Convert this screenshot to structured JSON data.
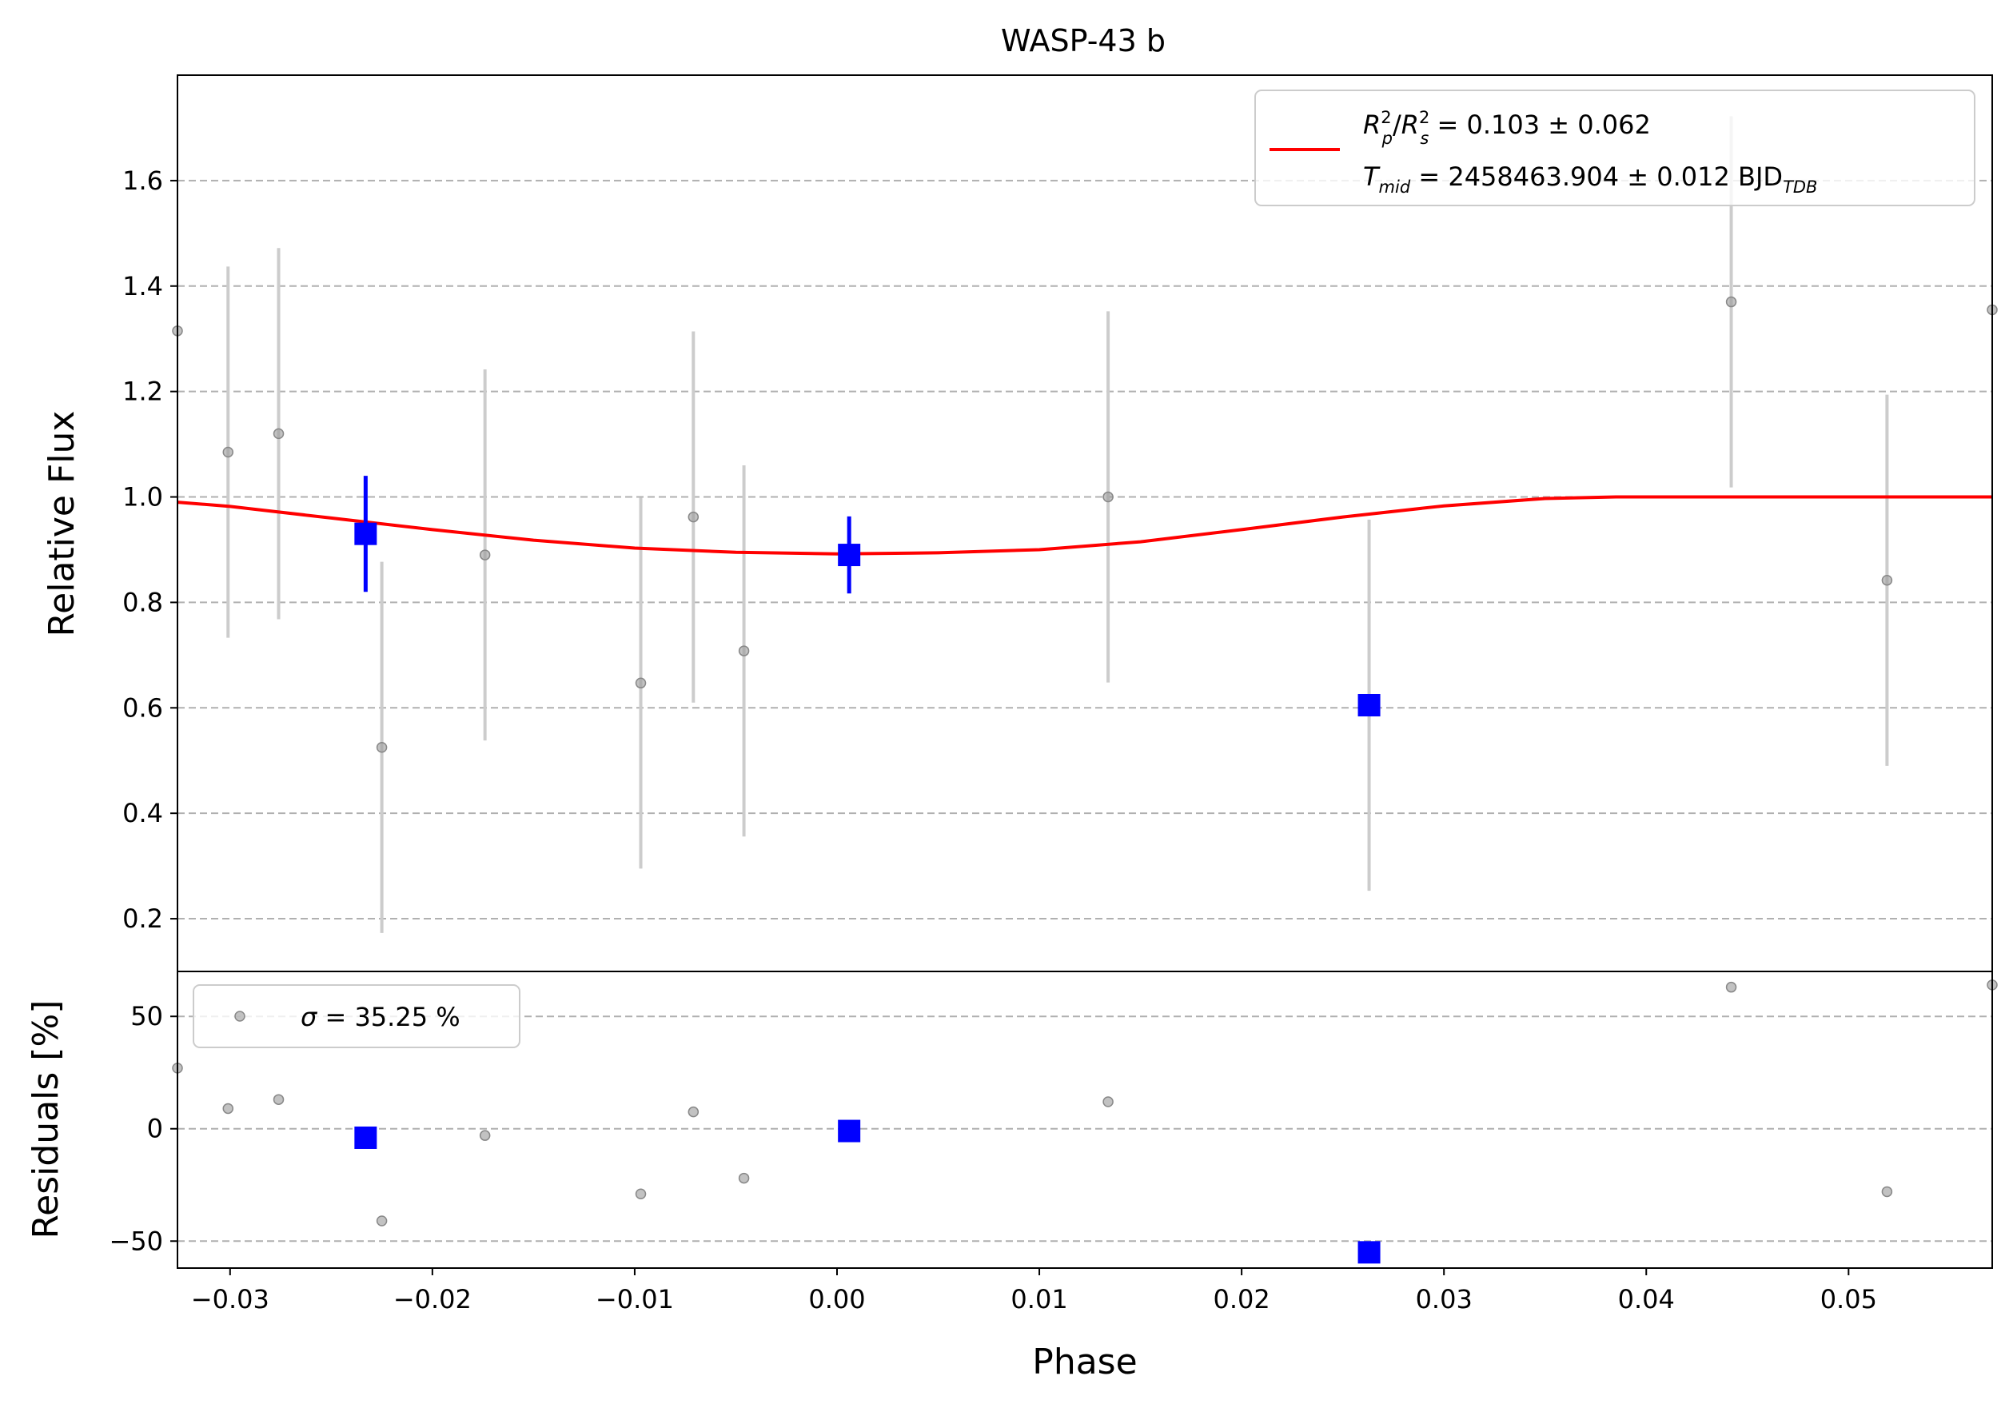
{
  "title": "WASP-43 b",
  "chart_data": [
    {
      "type": "scatter",
      "panel": "flux",
      "title": "WASP-43 b",
      "ylabel": "Relative Flux",
      "xlim": [
        -0.0326,
        0.0571
      ],
      "ylim": [
        0.1,
        1.8
      ],
      "yticks": [
        0.2,
        0.4,
        0.6,
        0.8,
        1.0,
        1.2,
        1.4,
        1.6
      ],
      "grid": "y-dashed",
      "legend_position": "top-right",
      "legend": {
        "line1": {
          "a": "R",
          "a_sup": "2",
          "a_sub": "p",
          "slash": "/",
          "b": "R",
          "b_sup": "2",
          "b_sub": "s",
          "rest": " = 0.103 ± 0.062"
        },
        "line2": {
          "a": "T",
          "a_sub": "mid",
          "rest": " = 2458463.904 ± 0.012 BJD",
          "unit_sub": "TDB"
        }
      },
      "colors": {
        "raw": "#999999",
        "raw_err": "#cccccc",
        "binned": "#0000ff",
        "model": "#ff0000"
      },
      "raw_points": [
        {
          "x": -0.0326,
          "y": 1.315,
          "err": 0.0
        },
        {
          "x": -0.0301,
          "y": 1.085,
          "err": 0.352
        },
        {
          "x": -0.0276,
          "y": 1.12,
          "err": 0.352
        },
        {
          "x": -0.0225,
          "y": 0.525,
          "err": 0.352
        },
        {
          "x": -0.0174,
          "y": 0.89,
          "err": 0.352
        },
        {
          "x": -0.0097,
          "y": 0.647,
          "err": 0.352
        },
        {
          "x": -0.0071,
          "y": 0.962,
          "err": 0.352
        },
        {
          "x": -0.0046,
          "y": 0.708,
          "err": 0.352
        },
        {
          "x": 0.0134,
          "y": 1.0,
          "err": 0.352
        },
        {
          "x": 0.0263,
          "y": 0.605,
          "err": 0.352
        },
        {
          "x": 0.0442,
          "y": 1.37,
          "err": 0.352
        },
        {
          "x": 0.0519,
          "y": 0.842,
          "err": 0.352
        },
        {
          "x": 0.0571,
          "y": 1.355,
          "err": 0.0
        }
      ],
      "binned_points": [
        {
          "x": -0.0233,
          "y": 0.93,
          "err": 0.11
        },
        {
          "x": 0.0006,
          "y": 0.89,
          "err": 0.073
        },
        {
          "x": 0.0263,
          "y": 0.605,
          "err": 0.0
        }
      ],
      "model_points": [
        {
          "x": -0.0326,
          "y": 0.99
        },
        {
          "x": -0.03,
          "y": 0.982
        },
        {
          "x": -0.025,
          "y": 0.96
        },
        {
          "x": -0.02,
          "y": 0.938
        },
        {
          "x": -0.015,
          "y": 0.918
        },
        {
          "x": -0.01,
          "y": 0.903
        },
        {
          "x": -0.005,
          "y": 0.895
        },
        {
          "x": 0.0,
          "y": 0.892
        },
        {
          "x": 0.005,
          "y": 0.894
        },
        {
          "x": 0.01,
          "y": 0.9
        },
        {
          "x": 0.015,
          "y": 0.915
        },
        {
          "x": 0.02,
          "y": 0.938
        },
        {
          "x": 0.025,
          "y": 0.962
        },
        {
          "x": 0.03,
          "y": 0.983
        },
        {
          "x": 0.035,
          "y": 0.997
        },
        {
          "x": 0.0385,
          "y": 1.0
        },
        {
          "x": 0.045,
          "y": 1.0
        },
        {
          "x": 0.0571,
          "y": 1.0
        }
      ]
    },
    {
      "type": "scatter",
      "panel": "residuals",
      "ylabel": "Residuals [%]",
      "xlabel": "Phase",
      "xlim": [
        -0.0326,
        0.0571
      ],
      "ylim": [
        -62,
        70
      ],
      "yticks": [
        -50,
        0,
        50
      ],
      "xticks": [
        -0.03,
        -0.02,
        -0.01,
        0.0,
        0.01,
        0.02,
        0.03,
        0.04,
        0.05
      ],
      "xtick_labels": [
        "−0.03",
        "−0.02",
        "−0.01",
        "0.00",
        "0.01",
        "0.02",
        "0.03",
        "0.04",
        "0.05"
      ],
      "ytick_labels": [
        "−50",
        "0",
        "50"
      ],
      "grid": "y-dashed",
      "legend_position": "top-left",
      "legend": {
        "symbol": "σ",
        "rest": " = 35.25 %"
      },
      "raw_points": [
        {
          "x": -0.0326,
          "y": 27
        },
        {
          "x": -0.0301,
          "y": 9
        },
        {
          "x": -0.0276,
          "y": 13
        },
        {
          "x": -0.0225,
          "y": -41
        },
        {
          "x": -0.0174,
          "y": -3
        },
        {
          "x": -0.0097,
          "y": -29
        },
        {
          "x": -0.0071,
          "y": 7.5
        },
        {
          "x": -0.0046,
          "y": -22
        },
        {
          "x": 0.0134,
          "y": 12
        },
        {
          "x": 0.0442,
          "y": 63
        },
        {
          "x": 0.0519,
          "y": -28
        },
        {
          "x": 0.0571,
          "y": 64
        }
      ],
      "binned_points": [
        {
          "x": -0.0233,
          "y": -4
        },
        {
          "x": 0.0006,
          "y": -1
        },
        {
          "x": 0.0263,
          "y": -55
        }
      ]
    }
  ]
}
